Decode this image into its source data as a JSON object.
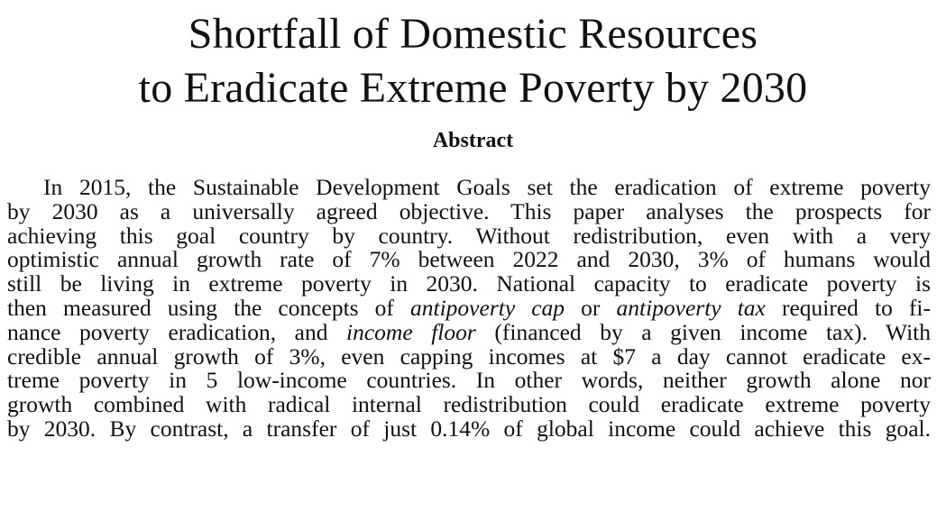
{
  "title": {
    "line1": "Shortfall of Domestic Resources",
    "line2": "to Eradicate Extreme Poverty by 2030"
  },
  "abstract": {
    "heading": "Abstract",
    "lines": [
      "In 2015, the Sustainable Development Goals set the eradication of extreme poverty",
      "by 2030 as a universally agreed objective.  This paper analyses the prospects for",
      "achieving this goal country by country.  Without redistribution, even with a very",
      "optimistic annual growth rate of 7% between 2022 and 2030, 3% of humans would",
      "still be living in extreme poverty in 2030.  National capacity to eradicate poverty is",
      [
        "then measured using the concepts of ",
        {
          "em": "antipoverty cap"
        },
        " or ",
        {
          "em": "antipoverty tax"
        },
        " required to fi-"
      ],
      [
        "nance poverty eradication, and ",
        {
          "em": "income floor"
        },
        " (financed by a given income tax).  With"
      ],
      "credible annual growth of 3%, even capping incomes at $7 a day cannot eradicate ex-",
      "treme poverty in 5 low-income countries.  In other words, neither growth alone nor",
      "growth combined with radical internal redistribution could eradicate extreme poverty",
      "by 2030. By contrast, a transfer of just 0.14% of global income could achieve this goal."
    ]
  }
}
